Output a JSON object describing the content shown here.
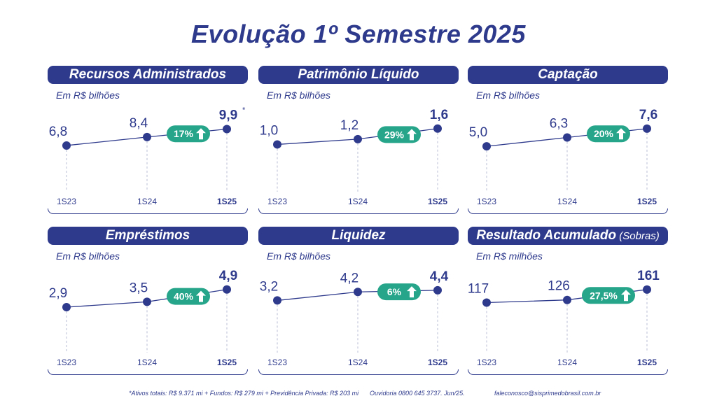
{
  "title": "Evolução 1º Semestre 2025",
  "chart_data": [
    {
      "type": "line",
      "title": "Recursos Administrados",
      "title_suffix": "",
      "unit_label": "Em R$ bilhões",
      "categories": [
        "1S23",
        "1S24",
        "1S25"
      ],
      "values": [
        6.8,
        8.4,
        9.9
      ],
      "value_labels": [
        "6,8",
        "8,4",
        "9,9"
      ],
      "last_marker": "*",
      "growth_label": "17%",
      "ylim": [
        6.0,
        10.5
      ]
    },
    {
      "type": "line",
      "title": "Patrimônio Líquido",
      "title_suffix": "",
      "unit_label": "Em R$ bilhões",
      "categories": [
        "1S23",
        "1S24",
        "1S25"
      ],
      "values": [
        1.0,
        1.2,
        1.6
      ],
      "value_labels": [
        "1,0",
        "1,2",
        "1,6"
      ],
      "last_marker": "",
      "growth_label": "29%",
      "ylim": [
        0.8,
        1.7
      ]
    },
    {
      "type": "line",
      "title": "Captação",
      "title_suffix": "",
      "unit_label": "Em R$ bilhões",
      "categories": [
        "1S23",
        "1S24",
        "1S25"
      ],
      "values": [
        5.0,
        6.3,
        7.6
      ],
      "value_labels": [
        "5,0",
        "6,3",
        "7,6"
      ],
      "last_marker": "",
      "growth_label": "20%",
      "ylim": [
        4.5,
        8.0
      ]
    },
    {
      "type": "line",
      "title": "Empréstimos",
      "title_suffix": "",
      "unit_label": "Em R$ bilhões",
      "categories": [
        "1S23",
        "1S24",
        "1S25"
      ],
      "values": [
        2.9,
        3.5,
        4.9
      ],
      "value_labels": [
        "2,9",
        "3,5",
        "4,9"
      ],
      "last_marker": "",
      "growth_label": "40%",
      "ylim": [
        2.5,
        5.2
      ]
    },
    {
      "type": "line",
      "title": "Liquidez",
      "title_suffix": "",
      "unit_label": "Em R$ bilhões",
      "categories": [
        "1S23",
        "1S24",
        "1S25"
      ],
      "values": [
        3.2,
        4.2,
        4.4
      ],
      "value_labels": [
        "3,2",
        "4,2",
        "4,4"
      ],
      "last_marker": "",
      "growth_label": "6%",
      "ylim": [
        2.0,
        4.8
      ]
    },
    {
      "type": "line",
      "title": "Resultado Acumulado",
      "title_suffix": " (Sobras)",
      "unit_label": "Em R$ milhões",
      "categories": [
        "1S23",
        "1S24",
        "1S25"
      ],
      "values": [
        117,
        126,
        161
      ],
      "value_labels": [
        "117",
        "126",
        "161"
      ],
      "last_marker": "",
      "growth_label": "27,5%",
      "ylim": [
        90,
        170
      ]
    }
  ],
  "footer": {
    "note": "*Ativos totais: R$ 9.371 mi + Fundos: R$ 279 mi + Previdência Privada: R$ 203 mi",
    "ouvidoria": "Ouvidoria 0800 645 3737. Jun/25.",
    "email": "faleconosco@sisprimedobrasil.com.br"
  },
  "colors": {
    "navy": "#2e3a8c",
    "green": "#26a58a",
    "text": "#2b3a7e"
  }
}
